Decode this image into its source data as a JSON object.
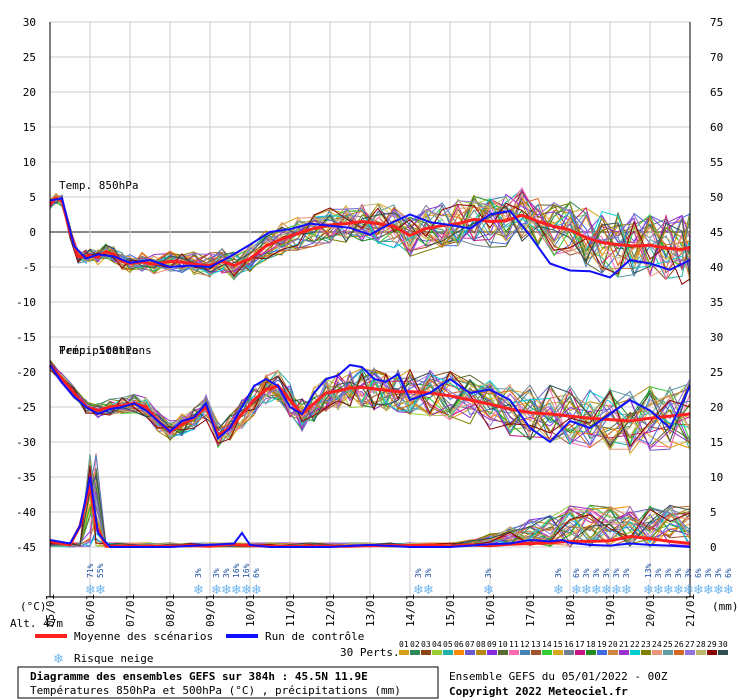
{
  "chart_data": {
    "type": "line",
    "title": "Diagramme des ensembles GEFS sur 384h : 45.5N 11.9E",
    "subtitle": "Températures 850hPa et 500hPa (°C) , précipitations (mm)",
    "run_label": "Ensemble GEFS du 05/01/2022 - 00Z",
    "copyright": "Copyright 2022 Meteociel.fr",
    "altitude_label": "Alt. 47m",
    "left_unit": "(°C)",
    "right_unit": "(mm)",
    "left_ticks": [
      "30",
      "25",
      "20",
      "15",
      "10",
      "5",
      "0",
      "-5",
      "-10",
      "-15",
      "-20",
      "-25",
      "-30",
      "-35",
      "-40",
      "-45"
    ],
    "right_ticks": [
      "75",
      "70",
      "65",
      "60",
      "55",
      "50",
      "45",
      "40",
      "35",
      "30",
      "25",
      "20",
      "15",
      "10",
      "5",
      "0"
    ],
    "ylim_temperature": [
      -45,
      30
    ],
    "ylim_precip_mm": [
      0,
      75
    ],
    "x_labels": [
      "05/01",
      "06/01",
      "07/01",
      "08/01",
      "09/01",
      "10/01",
      "11/01",
      "12/01",
      "13/01",
      "14/01",
      "15/01",
      "16/01",
      "17/01",
      "18/01",
      "19/01",
      "20/01",
      "21/01"
    ],
    "panel_labels": {
      "t850": "Temp. 850hPa",
      "t500": "Temp. 500hPa",
      "precip": "Précipitations"
    },
    "legend": {
      "mean": "Moyenne des scénarios",
      "control": "Run de contrôle",
      "snow": "Risque neige",
      "perts": "30 Perts.",
      "pert_numbers": [
        "01",
        "02",
        "03",
        "04",
        "05",
        "06",
        "07",
        "08",
        "09",
        "10",
        "11",
        "12",
        "13",
        "14",
        "15",
        "16",
        "17",
        "18",
        "19",
        "20",
        "21",
        "22",
        "23",
        "24",
        "25",
        "26",
        "27",
        "28",
        "29",
        "30"
      ]
    },
    "colors": {
      "mean": "#ff2020",
      "control": "#1010ff",
      "grid": "#cccccc",
      "zero_line": "#888888",
      "perturbations": [
        "#d4a017",
        "#2e8b57",
        "#8b4513",
        "#9acd32",
        "#20b2aa",
        "#ff8c00",
        "#6a5acd",
        "#b8860b",
        "#8a2be2",
        "#556b2f",
        "#ff69b4",
        "#4682b4",
        "#a0522d",
        "#32cd32",
        "#daa520",
        "#708090",
        "#c71585",
        "#228b22",
        "#4169e1",
        "#cd853f",
        "#9932cc",
        "#00ced1",
        "#808000",
        "#e9967a",
        "#5f9ea0",
        "#d2691e",
        "#9370db",
        "#bdb76b",
        "#8b0000",
        "#2f4f4f"
      ]
    },
    "series": [
      {
        "name": "Moyenne des scénarios",
        "panel": "t850",
        "x": [
          0,
          0.15,
          0.3,
          0.5,
          0.7,
          0.9,
          1.0,
          1.2,
          1.4,
          1.6,
          1.8,
          2.0,
          2.3,
          2.6,
          3.0,
          3.3,
          3.6,
          4.0,
          4.3,
          4.6,
          5.0,
          5.4,
          5.8,
          6.2,
          6.6,
          7.0,
          7.4,
          7.8,
          8.2,
          8.6,
          9.0,
          9.4,
          9.8,
          10.2,
          10.6,
          11.0,
          11.4,
          11.8,
          12.2,
          12.6,
          13.0,
          13.4,
          13.8,
          14.2,
          14.6,
          15.0,
          15.4,
          15.8,
          16.0
        ],
        "y": [
          4,
          4.8,
          4.5,
          0,
          -3.5,
          -3.5,
          -3.4,
          -3.6,
          -2.8,
          -3.2,
          -4.2,
          -4.5,
          -4.3,
          -4.6,
          -4.2,
          -4.3,
          -4.6,
          -4.8,
          -4.2,
          -4.8,
          -3.8,
          -2,
          -1,
          -0.2,
          0.5,
          1.0,
          1.2,
          1.5,
          1.2,
          0.8,
          -0.5,
          0.5,
          0.9,
          1.2,
          1.8,
          1.5,
          1.6,
          2.4,
          1.5,
          0.8,
          0.3,
          -0.8,
          -1.5,
          -1.8,
          -2.0,
          -1.9,
          -2.3,
          -2.5,
          -2.2
        ]
      },
      {
        "name": "Run de contrôle",
        "panel": "t850",
        "x": [
          0,
          0.3,
          0.6,
          0.9,
          1.2,
          1.6,
          2.0,
          2.5,
          3.0,
          3.5,
          4.0,
          4.5,
          5.0,
          5.5,
          6.0,
          6.5,
          7.0,
          7.5,
          8.0,
          8.5,
          9.0,
          9.5,
          10.0,
          10.5,
          11.0,
          11.5,
          12.0,
          12.5,
          13.0,
          13.5,
          14.0,
          14.5,
          15.0,
          15.5,
          16.0
        ],
        "y": [
          4.5,
          4.8,
          -2,
          -3.8,
          -3.2,
          -3.5,
          -4.4,
          -4,
          -5,
          -4.8,
          -5,
          -3.5,
          -1.8,
          0,
          0.4,
          1.2,
          0.9,
          0.6,
          -0.4,
          1.2,
          2.5,
          1.4,
          1.0,
          0.5,
          2.5,
          3.0,
          -0.5,
          -4.5,
          -5.5,
          -5.6,
          -6.5,
          -4,
          -4.5,
          -5.4,
          -4
        ]
      },
      {
        "name": "Moyenne des scénarios",
        "panel": "t500",
        "x": [
          0,
          0.3,
          0.6,
          0.9,
          1.2,
          1.5,
          1.8,
          2.1,
          2.4,
          2.7,
          3.0,
          3.3,
          3.6,
          3.9,
          4.2,
          4.5,
          4.8,
          5.1,
          5.4,
          5.7,
          6.0,
          6.3,
          6.6,
          6.9,
          7.2,
          7.5,
          7.8,
          8.1,
          8.4,
          8.7,
          9.0,
          9.5,
          10.0,
          10.5,
          11.0,
          11.5,
          12.0,
          12.5,
          13.0,
          13.5,
          14.0,
          14.5,
          15.0,
          15.5,
          16.0
        ],
        "y": [
          -19,
          -21,
          -23,
          -25,
          -25.5,
          -25,
          -24.8,
          -24.5,
          -25,
          -27,
          -28.5,
          -27.5,
          -26.5,
          -25,
          -29,
          -28,
          -26,
          -24,
          -22.5,
          -22,
          -24,
          -26,
          -24.5,
          -23,
          -22.7,
          -22.3,
          -22.2,
          -22.4,
          -22.6,
          -22.8,
          -22.8,
          -23.0,
          -23.4,
          -24.0,
          -24.6,
          -25.3,
          -25.8,
          -26.0,
          -26.3,
          -26.6,
          -26.8,
          -27.0,
          -26.6,
          -26.3,
          -26.0
        ]
      },
      {
        "name": "Run de contrôle",
        "panel": "t500",
        "x": [
          0,
          0.3,
          0.6,
          0.9,
          1.2,
          1.5,
          1.8,
          2.1,
          2.4,
          2.7,
          3.0,
          3.3,
          3.6,
          3.9,
          4.2,
          4.5,
          4.8,
          5.1,
          5.4,
          5.7,
          6.0,
          6.3,
          6.6,
          6.9,
          7.2,
          7.5,
          7.8,
          8.1,
          8.4,
          8.7,
          9.0,
          9.5,
          10.0,
          10.5,
          11.0,
          11.5,
          12.0,
          12.5,
          13.0,
          13.5,
          14.0,
          14.5,
          15.0,
          15.5,
          16.0
        ],
        "y": [
          -19,
          -21.5,
          -23.5,
          -25,
          -26,
          -25.3,
          -25,
          -24.5,
          -25.5,
          -27,
          -28.5,
          -27,
          -26.5,
          -24.5,
          -29.5,
          -28,
          -25,
          -22,
          -21,
          -22,
          -25,
          -26,
          -23,
          -21,
          -20.5,
          -19,
          -19.3,
          -21,
          -21.4,
          -20.3,
          -24,
          -23,
          -21,
          -23,
          -22.5,
          -24,
          -28,
          -30,
          -27,
          -28,
          -26,
          -24,
          -25.5,
          -28,
          -22
        ]
      },
      {
        "name": "Moyenne des scénarios",
        "panel": "precip",
        "x": [
          0,
          0.5,
          0.75,
          1.0,
          1.15,
          1.4,
          1.8,
          2.5,
          3.0,
          3.5,
          4.0,
          4.5,
          5.0,
          5.5,
          6.0,
          6.5,
          7.0,
          7.5,
          8.0,
          8.5,
          9.0,
          9.5,
          10.0,
          10.5,
          11.0,
          11.5,
          12.0,
          12.5,
          13.0,
          13.5,
          14.0,
          14.5,
          15.0,
          15.5,
          16.0
        ],
        "y": [
          0.8,
          0.3,
          3,
          9,
          3,
          0.1,
          0.1,
          0.1,
          0.1,
          0.2,
          0.1,
          0.4,
          0.2,
          0.1,
          0.1,
          0.1,
          0.1,
          0.1,
          0.2,
          0.2,
          0.2,
          0.3,
          0.1,
          0.3,
          0.2,
          0.4,
          0.5,
          0.6,
          0.8,
          0.8,
          0.9,
          1.5,
          1.2,
          0.8,
          0.5
        ]
      },
      {
        "name": "Run de contrôle",
        "panel": "precip",
        "x": [
          0,
          0.5,
          0.75,
          1.0,
          1.2,
          1.5,
          2.0,
          3.0,
          4.0,
          4.6,
          4.8,
          5.0,
          5.5,
          6.0,
          7.0,
          8.0,
          9.0,
          9.5,
          10.0,
          11.0,
          11.5,
          12.0,
          12.5,
          12.8,
          13.0,
          13.5,
          14.0,
          14.5,
          15.0,
          15.5,
          16.0
        ],
        "y": [
          1,
          0.5,
          3,
          10,
          2,
          0,
          0,
          0,
          0.3,
          0.5,
          2,
          0.3,
          0,
          0,
          0,
          0.3,
          0,
          0,
          0,
          0.4,
          0.5,
          1,
          0.8,
          1,
          0.6,
          0.3,
          0.2,
          0.5,
          0.3,
          0.2,
          0
        ]
      }
    ],
    "snow_risk": [
      {
        "x": 1.0,
        "pct": "71%"
      },
      {
        "x": 1.25,
        "pct": "55%"
      },
      {
        "x": 3.7,
        "pct": "3%"
      },
      {
        "x": 4.15,
        "pct": "3%"
      },
      {
        "x": 4.4,
        "pct": "3%"
      },
      {
        "x": 4.65,
        "pct": "16%"
      },
      {
        "x": 4.9,
        "pct": "16%"
      },
      {
        "x": 5.15,
        "pct": "6%"
      },
      {
        "x": 9.2,
        "pct": "3%"
      },
      {
        "x": 9.45,
        "pct": "3%"
      },
      {
        "x": 10.95,
        "pct": "3%"
      },
      {
        "x": 12.7,
        "pct": "3%"
      },
      {
        "x": 13.15,
        "pct": "6%"
      },
      {
        "x": 13.4,
        "pct": "3%"
      },
      {
        "x": 13.65,
        "pct": "3%"
      },
      {
        "x": 13.9,
        "pct": "3%"
      },
      {
        "x": 14.15,
        "pct": "3%"
      },
      {
        "x": 14.4,
        "pct": "3%"
      },
      {
        "x": 14.95,
        "pct": "13%"
      },
      {
        "x": 15.2,
        "pct": "3%"
      },
      {
        "x": 15.45,
        "pct": "3%"
      },
      {
        "x": 15.7,
        "pct": "3%"
      },
      {
        "x": 15.95,
        "pct": "3%"
      },
      {
        "x": 16.2,
        "pct": "6%"
      },
      {
        "x": 16.45,
        "pct": "3%"
      },
      {
        "x": 16.7,
        "pct": "3%"
      },
      {
        "x": 16.95,
        "pct": "6%"
      }
    ]
  }
}
